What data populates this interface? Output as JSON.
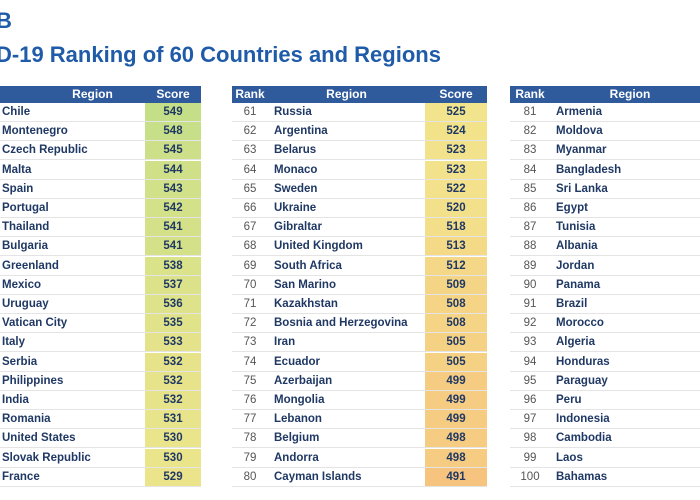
{
  "header": {
    "badge": "B",
    "title": "D-19 Ranking of 60 Countries and Regions"
  },
  "tables": [
    {
      "columns": [
        "Region",
        "Score"
      ],
      "rows": [
        [
          "Chile",
          549
        ],
        [
          "Montenegro",
          548
        ],
        [
          "Czech Republic",
          545
        ],
        [
          "Malta",
          544
        ],
        [
          "Spain",
          543
        ],
        [
          "Portugal",
          542
        ],
        [
          "Thailand",
          541
        ],
        [
          "Bulgaria",
          541
        ],
        [
          "Greenland",
          538
        ],
        [
          "Mexico",
          537
        ],
        [
          "Uruguay",
          536
        ],
        [
          "Vatican City",
          535
        ],
        [
          "Italy",
          533
        ],
        [
          "Serbia",
          532
        ],
        [
          "Philippines",
          532
        ],
        [
          "India",
          532
        ],
        [
          "Romania",
          531
        ],
        [
          "United States",
          530
        ],
        [
          "Slovak Republic",
          530
        ],
        [
          "France",
          529
        ]
      ]
    },
    {
      "columns": [
        "Rank",
        "Region",
        "Score"
      ],
      "rows": [
        [
          61,
          "Russia",
          525
        ],
        [
          62,
          "Argentina",
          524
        ],
        [
          63,
          "Belarus",
          523
        ],
        [
          64,
          "Monaco",
          523
        ],
        [
          65,
          "Sweden",
          522
        ],
        [
          66,
          "Ukraine",
          520
        ],
        [
          67,
          "Gibraltar",
          518
        ],
        [
          68,
          "United Kingdom",
          513
        ],
        [
          69,
          "South Africa",
          512
        ],
        [
          70,
          "San Marino",
          509
        ],
        [
          71,
          "Kazakhstan",
          508
        ],
        [
          72,
          "Bosnia and Herzegovina",
          508
        ],
        [
          73,
          "Iran",
          505
        ],
        [
          74,
          "Ecuador",
          505
        ],
        [
          75,
          "Azerbaijan",
          499
        ],
        [
          76,
          "Mongolia",
          499
        ],
        [
          77,
          "Lebanon",
          499
        ],
        [
          78,
          "Belgium",
          498
        ],
        [
          79,
          "Andorra",
          498
        ],
        [
          80,
          "Cayman Islands",
          491
        ]
      ]
    },
    {
      "columns": [
        "Rank",
        "Region"
      ],
      "rows": [
        [
          81,
          "Armenia"
        ],
        [
          82,
          "Moldova"
        ],
        [
          83,
          "Myanmar"
        ],
        [
          84,
          "Bangladesh"
        ],
        [
          85,
          "Sri Lanka"
        ],
        [
          86,
          "Egypt"
        ],
        [
          87,
          "Tunisia"
        ],
        [
          88,
          "Albania"
        ],
        [
          89,
          "Jordan"
        ],
        [
          90,
          "Panama"
        ],
        [
          91,
          "Brazil"
        ],
        [
          92,
          "Morocco"
        ],
        [
          93,
          "Algeria"
        ],
        [
          94,
          "Honduras"
        ],
        [
          95,
          "Paraguay"
        ],
        [
          96,
          "Peru"
        ],
        [
          97,
          "Indonesia"
        ],
        [
          98,
          "Cambodia"
        ],
        [
          99,
          "Laos"
        ],
        [
          100,
          "Bahamas"
        ]
      ]
    }
  ]
}
